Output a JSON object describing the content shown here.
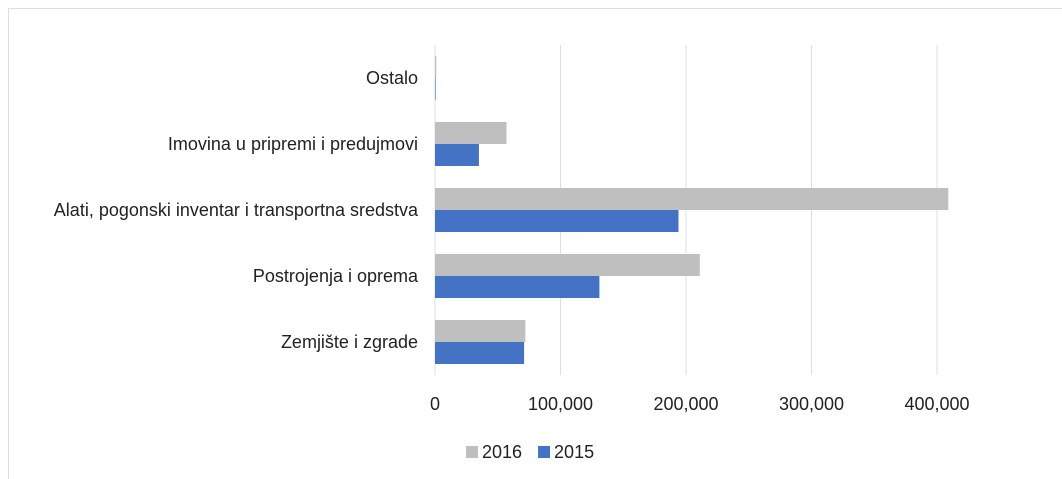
{
  "chart_data": {
    "type": "barh",
    "categories": [
      "Ostalo",
      "Imovina u pripremi i predujmovi",
      "Alati, pogonski inventar i transportna sredstva",
      "Postrojenja i oprema",
      "Zemjište i zgrade"
    ],
    "series": [
      {
        "name": "2016",
        "color": "#bfbfbf",
        "values": [
          1000,
          57000,
          409000,
          211000,
          72000
        ]
      },
      {
        "name": "2015",
        "color": "#4472c4",
        "values": [
          500,
          35000,
          194000,
          131000,
          71000
        ]
      }
    ],
    "xlim": [
      0,
      450000
    ],
    "xticks": [
      0,
      {
        "value": 100000,
        "label": "100,000"
      },
      {
        "value": 200000,
        "label": "200,000"
      },
      {
        "value": 300000,
        "label": "300,000"
      },
      {
        "value": 400000,
        "label": "400,000"
      }
    ],
    "grid": true,
    "legend": "bottom"
  }
}
